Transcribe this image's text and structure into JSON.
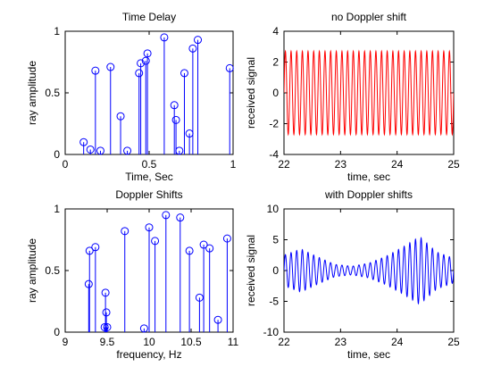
{
  "chart_data": [
    {
      "type": "stem",
      "title": "Time Delay",
      "xlabel": "Time, Sec",
      "ylabel": "ray amplitude",
      "xlim": [
        0,
        1
      ],
      "ylim": [
        0,
        1
      ],
      "xticks": [
        0,
        0.5,
        1
      ],
      "xtick_labels": [
        "0",
        "0.5",
        "1"
      ],
      "yticks": [
        0,
        0.5,
        1
      ],
      "ytick_labels": [
        "0",
        "0.5",
        "1"
      ],
      "color": "#0000ff",
      "points": [
        {
          "x": 0.11,
          "y": 0.1
        },
        {
          "x": 0.15,
          "y": 0.04
        },
        {
          "x": 0.18,
          "y": 0.68
        },
        {
          "x": 0.21,
          "y": 0.03
        },
        {
          "x": 0.27,
          "y": 0.71
        },
        {
          "x": 0.33,
          "y": 0.31
        },
        {
          "x": 0.37,
          "y": 0.03
        },
        {
          "x": 0.44,
          "y": 0.66
        },
        {
          "x": 0.45,
          "y": 0.74
        },
        {
          "x": 0.48,
          "y": 0.76
        },
        {
          "x": 0.49,
          "y": 0.82
        },
        {
          "x": 0.59,
          "y": 0.95
        },
        {
          "x": 0.65,
          "y": 0.4
        },
        {
          "x": 0.66,
          "y": 0.28
        },
        {
          "x": 0.68,
          "y": 0.03
        },
        {
          "x": 0.71,
          "y": 0.66
        },
        {
          "x": 0.74,
          "y": 0.17
        },
        {
          "x": 0.76,
          "y": 0.86
        },
        {
          "x": 0.79,
          "y": 0.93
        },
        {
          "x": 0.98,
          "y": 0.7
        }
      ]
    },
    {
      "type": "line",
      "title": "no Doppler shift",
      "xlabel": "time, sec",
      "ylabel": "received signal",
      "xlim": [
        22,
        25
      ],
      "ylim": [
        -4,
        4
      ],
      "xticks": [
        22,
        23,
        24,
        25
      ],
      "xtick_labels": [
        "22",
        "23",
        "24",
        "25"
      ],
      "yticks": [
        -4,
        -2,
        0,
        2,
        4
      ],
      "ytick_labels": [
        "-4",
        "-2",
        "0",
        "2",
        "4"
      ],
      "color": "#ff0000",
      "signal": {
        "frequency_hz": 10,
        "amplitude": 2.7
      }
    },
    {
      "type": "stem",
      "title": "Doppler Shifts",
      "xlabel": "frequency, Hz",
      "ylabel": "ray amplitude",
      "xlim": [
        9,
        11
      ],
      "ylim": [
        0,
        1
      ],
      "xticks": [
        9,
        9.5,
        10,
        10.5,
        11
      ],
      "xtick_labels": [
        "9",
        "9.5",
        "10",
        "10.5",
        "11"
      ],
      "yticks": [
        0,
        0.5,
        1
      ],
      "ytick_labels": [
        "0",
        "0.5",
        "1"
      ],
      "color": "#0000ff",
      "points": [
        {
          "x": 9.28,
          "y": 0.39
        },
        {
          "x": 9.29,
          "y": 0.66
        },
        {
          "x": 9.36,
          "y": 0.69
        },
        {
          "x": 9.47,
          "y": 0.04
        },
        {
          "x": 9.48,
          "y": 0.32
        },
        {
          "x": 9.49,
          "y": 0.16
        },
        {
          "x": 9.5,
          "y": 0.04
        },
        {
          "x": 9.71,
          "y": 0.82
        },
        {
          "x": 9.94,
          "y": 0.03
        },
        {
          "x": 10.0,
          "y": 0.85
        },
        {
          "x": 10.07,
          "y": 0.74
        },
        {
          "x": 10.2,
          "y": 0.95
        },
        {
          "x": 10.37,
          "y": 0.93
        },
        {
          "x": 10.48,
          "y": 0.66
        },
        {
          "x": 10.6,
          "y": 0.28
        },
        {
          "x": 10.65,
          "y": 0.71
        },
        {
          "x": 10.72,
          "y": 0.68
        },
        {
          "x": 10.82,
          "y": 0.1
        },
        {
          "x": 10.93,
          "y": 0.76
        }
      ]
    },
    {
      "type": "line",
      "title": "with Doppler shifts",
      "xlabel": "time, sec",
      "ylabel": "received signal",
      "xlim": [
        22,
        25
      ],
      "ylim": [
        -10,
        10
      ],
      "xticks": [
        22,
        23,
        24,
        25
      ],
      "xtick_labels": [
        "22",
        "23",
        "24",
        "25"
      ],
      "yticks": [
        -10,
        -5,
        0,
        5,
        10
      ],
      "ytick_labels": [
        "-10",
        "-5",
        "0",
        "5",
        "10"
      ],
      "color": "#0000ff",
      "signal": {
        "frequency_hz": 10,
        "envelope_t": [
          22.0,
          22.3,
          22.6,
          22.9,
          23.2,
          23.5,
          23.8,
          24.1,
          24.4,
          24.7,
          25.0
        ],
        "envelope_a": [
          2.5,
          3.5,
          2.2,
          1.0,
          0.7,
          1.2,
          2.3,
          3.8,
          5.5,
          3.0,
          2.0
        ]
      }
    }
  ]
}
